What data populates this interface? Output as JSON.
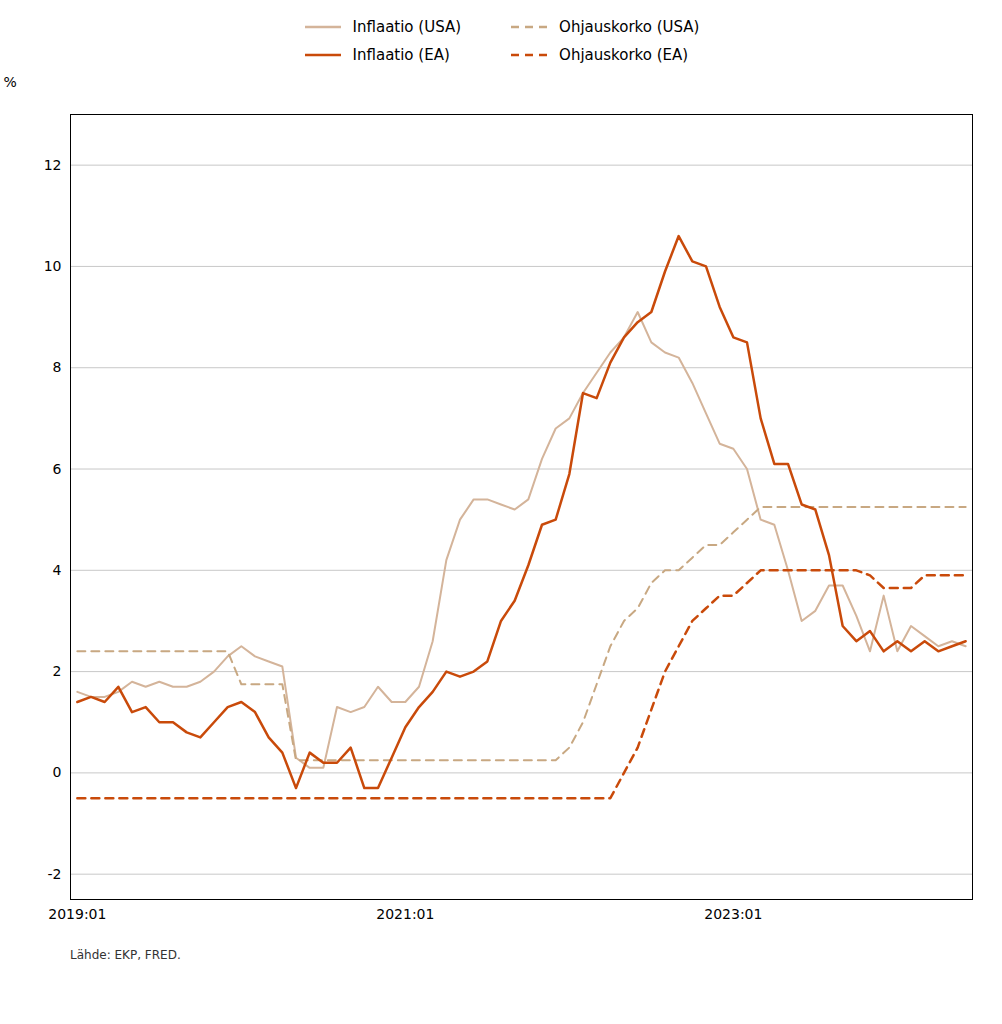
{
  "chart_data": {
    "type": "line",
    "ylabel": "%",
    "caption": "Lähde: EKP, FRED.",
    "categories": [
      "2019:01",
      null,
      null,
      null,
      null,
      null,
      null,
      null,
      null,
      null,
      null,
      null,
      null,
      null,
      null,
      null,
      null,
      null,
      null,
      null,
      null,
      null,
      null,
      null,
      "2021:01",
      null,
      null,
      null,
      null,
      null,
      null,
      null,
      null,
      null,
      null,
      null,
      null,
      null,
      null,
      null,
      null,
      null,
      null,
      null,
      null,
      null,
      null,
      null,
      "2023:01",
      null,
      null,
      null,
      null,
      null,
      null,
      null,
      null,
      null,
      null,
      null,
      null,
      null,
      null,
      null,
      null,
      null
    ],
    "ylim": [
      -2.5,
      13
    ],
    "yticks": [
      -2,
      0,
      2,
      4,
      6,
      8,
      10,
      12
    ],
    "grid": true,
    "legend": "top",
    "series": [
      {
        "name": "Inflaatio (USA)",
        "color": "#d4b49a",
        "line_style": "solid",
        "values": [
          1.6,
          1.5,
          1.5,
          1.6,
          1.8,
          1.7,
          1.8,
          1.7,
          1.7,
          1.8,
          2.0,
          2.3,
          2.5,
          2.3,
          2.2,
          2.1,
          0.3,
          0.1,
          0.1,
          1.3,
          1.2,
          1.3,
          1.7,
          1.4,
          1.4,
          1.7,
          2.6,
          4.2,
          5.0,
          5.4,
          5.4,
          5.3,
          5.2,
          5.4,
          6.2,
          6.8,
          7.0,
          7.5,
          7.9,
          8.3,
          8.6,
          9.1,
          8.5,
          8.3,
          8.2,
          7.7,
          7.1,
          6.5,
          6.4,
          6.0,
          5.0,
          4.9,
          4.0,
          3.0,
          3.2,
          3.7,
          3.7,
          3.1,
          2.4,
          3.5,
          2.4,
          2.9,
          2.7,
          2.5,
          2.6,
          2.5
        ]
      },
      {
        "name": "Ohjauskorko (USA)",
        "color": "#c8a882",
        "line_style": "dashed",
        "values": [
          2.4,
          2.4,
          2.4,
          2.4,
          2.4,
          2.4,
          2.4,
          2.4,
          2.4,
          2.4,
          2.4,
          2.4,
          1.75,
          1.75,
          1.75,
          1.75,
          0.25,
          0.25,
          0.25,
          0.25,
          0.25,
          0.25,
          0.25,
          0.25,
          0.25,
          0.25,
          0.25,
          0.25,
          0.25,
          0.25,
          0.25,
          0.25,
          0.25,
          0.25,
          0.25,
          0.25,
          0.5,
          1.0,
          1.75,
          2.5,
          3.0,
          3.25,
          3.75,
          4.0,
          4.0,
          4.25,
          4.5,
          4.5,
          4.75,
          5.0,
          5.25,
          5.25,
          5.25,
          5.25,
          5.25,
          5.25,
          5.25,
          5.25,
          5.25,
          5.25,
          5.25,
          5.25,
          5.25,
          5.25,
          5.25,
          5.25
        ]
      },
      {
        "name": "Inflaatio (EA)",
        "color": "#c94a0a",
        "line_style": "solid",
        "values": [
          1.4,
          1.5,
          1.4,
          1.7,
          1.2,
          1.3,
          1.0,
          1.0,
          0.8,
          0.7,
          1.0,
          1.3,
          1.4,
          1.2,
          0.7,
          0.4,
          -0.3,
          0.4,
          0.2,
          0.2,
          0.5,
          -0.3,
          -0.3,
          0.3,
          0.9,
          1.3,
          1.6,
          2.0,
          1.9,
          2.0,
          2.2,
          3.0,
          3.4,
          4.1,
          4.9,
          5.0,
          5.9,
          7.5,
          7.4,
          8.1,
          8.6,
          8.9,
          9.1,
          9.9,
          10.6,
          10.1,
          10.0,
          9.2,
          8.6,
          8.5,
          7.0,
          6.1,
          6.1,
          5.3,
          5.2,
          4.3,
          2.9,
          2.6,
          2.8,
          2.4,
          2.6,
          2.4,
          2.6,
          2.4,
          2.5,
          2.6
        ]
      },
      {
        "name": "Ohjauskorko (EA)",
        "color": "#c94a0a",
        "line_style": "dashed",
        "values": [
          -0.5,
          -0.5,
          -0.5,
          -0.5,
          -0.5,
          -0.5,
          -0.5,
          -0.5,
          -0.5,
          -0.5,
          -0.5,
          -0.5,
          -0.5,
          -0.5,
          -0.5,
          -0.5,
          -0.5,
          -0.5,
          -0.5,
          -0.5,
          -0.5,
          -0.5,
          -0.5,
          -0.5,
          -0.5,
          -0.5,
          -0.5,
          -0.5,
          -0.5,
          -0.5,
          -0.5,
          -0.5,
          -0.5,
          -0.5,
          -0.5,
          -0.5,
          -0.5,
          -0.5,
          -0.5,
          -0.5,
          0.0,
          0.5,
          1.25,
          2.0,
          2.5,
          3.0,
          3.25,
          3.5,
          3.5,
          3.75,
          4.0,
          4.0,
          4.0,
          4.0,
          4.0,
          4.0,
          4.0,
          4.0,
          3.9,
          3.65,
          3.65,
          3.65,
          3.9,
          3.9,
          3.9,
          3.9
        ]
      }
    ]
  }
}
